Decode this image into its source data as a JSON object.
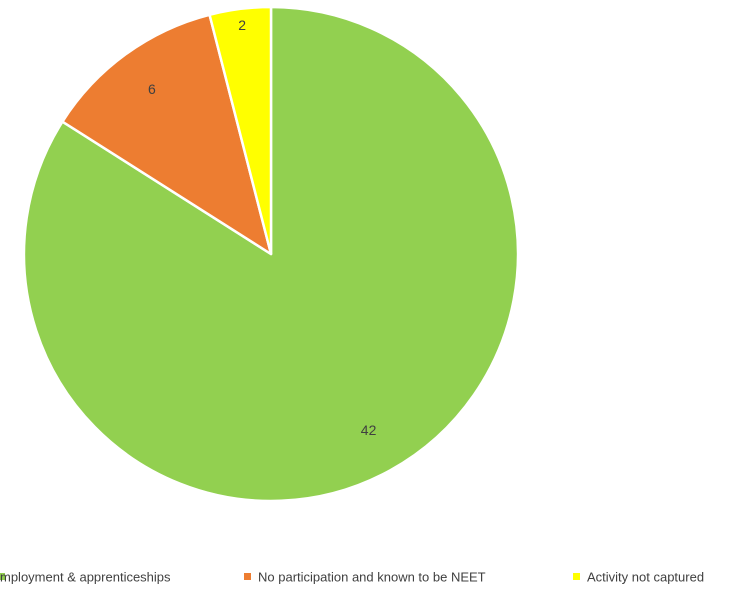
{
  "chart_data": {
    "type": "pie",
    "categories": [
      "Education, employment & apprenticeships",
      "No participation and known to be NEET",
      "Activity not captured"
    ],
    "values": [
      42,
      6,
      2
    ],
    "colors": [
      "#92d050",
      "#ed7d31",
      "#ffff00"
    ],
    "data_labels": [
      "42",
      "6",
      "2"
    ],
    "visible_legend_texts": [
      "mployment & apprenticeships",
      "No participation and known to be NEET",
      "Activity not captured"
    ],
    "legend_position": "bottom",
    "start_angle": "12 o'clock",
    "direction": "clockwise"
  }
}
